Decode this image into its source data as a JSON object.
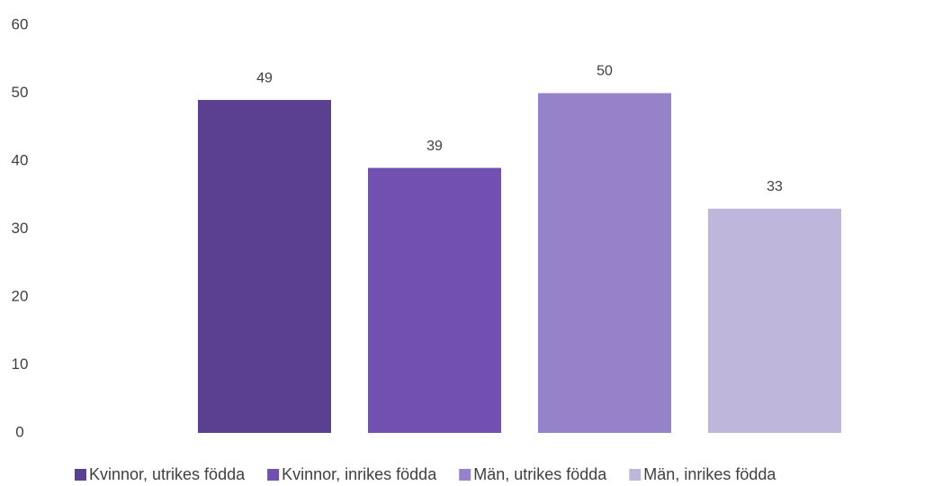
{
  "chart_data": {
    "type": "bar",
    "categories": [
      null
    ],
    "series": [
      {
        "name": "Kvinnor, utrikes födda",
        "color": "#5b3f91",
        "values": [
          49
        ]
      },
      {
        "name": "Kvinnor, inrikes födda",
        "color": "#7150b1",
        "values": [
          39
        ]
      },
      {
        "name": "Män, utrikes födda",
        "color": "#9682c8",
        "values": [
          50
        ]
      },
      {
        "name": "Män, inrikes födda",
        "color": "#bfb6dc",
        "values": [
          33
        ]
      }
    ],
    "ylim": [
      0,
      60
    ],
    "yticks": [
      0,
      10,
      20,
      30,
      40,
      50,
      60
    ],
    "grid": false,
    "legend": "bottom"
  }
}
